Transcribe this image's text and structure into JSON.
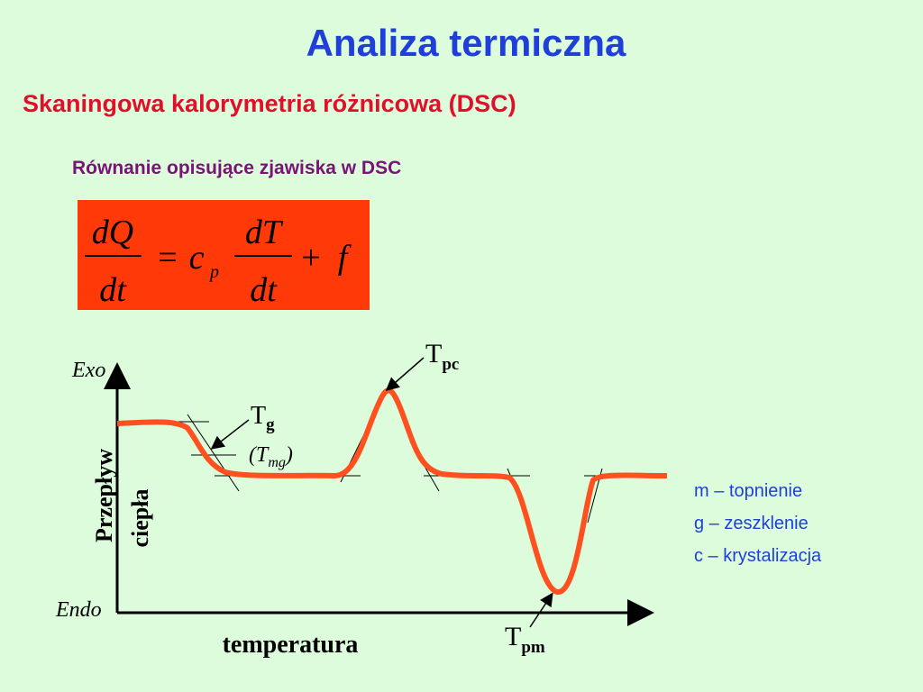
{
  "header": {
    "title": "Analiza termiczna",
    "subtitle": "Skaningowa kalorymetria różnicowa (DSC)"
  },
  "equation": {
    "caption": "Równanie opisujące zjawiska w DSC",
    "lhs_num": "dQ",
    "lhs_den": "dt",
    "equals": "=",
    "coef": "c",
    "coef_sub": "p",
    "rhs_num": "dT",
    "rhs_den": "dt",
    "plus": "+",
    "term": "f"
  },
  "diagram": {
    "y_top": "Exo",
    "y_bottom": "Endo",
    "y_label": [
      "Przepływ",
      "ciepła"
    ],
    "x_label": "temperatura",
    "annotations": [
      {
        "main": "T",
        "sub": "pc"
      },
      {
        "main": "T",
        "sub": "g"
      },
      {
        "open": "(",
        "main": "T",
        "sub": "mg",
        "close": ")"
      },
      {
        "main": "T",
        "sub": "pm"
      }
    ]
  },
  "legend": [
    "m – topnienie",
    "g – zeszklenie",
    "c – krystalizacja"
  ]
}
